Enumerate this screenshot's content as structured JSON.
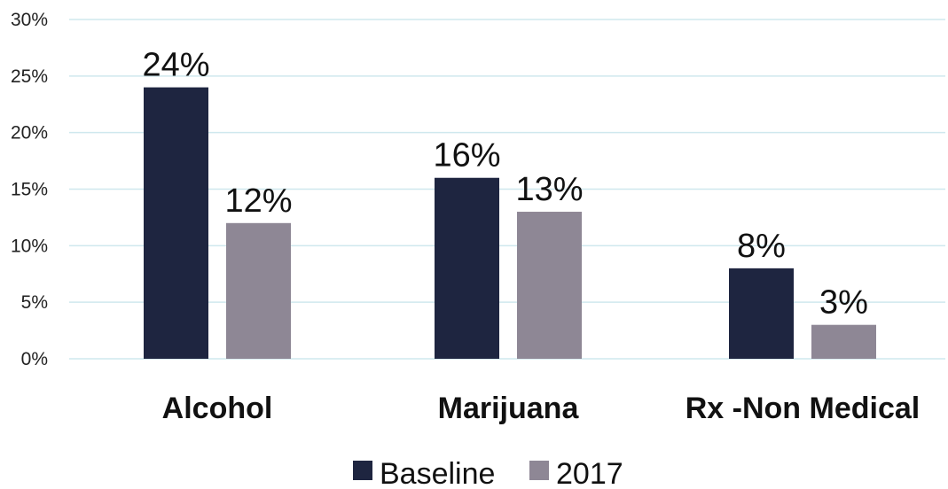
{
  "chart_data": {
    "type": "bar",
    "categories": [
      "Alcohol",
      "Marijuana",
      "Rx -Non Medical"
    ],
    "series": [
      {
        "name": "Baseline",
        "values": [
          24,
          16,
          8
        ],
        "labels": [
          "24%",
          "16%",
          "8%"
        ],
        "color": "#1e2540"
      },
      {
        "name": "2017",
        "values": [
          12,
          13,
          3
        ],
        "labels": [
          "12%",
          "13%",
          "3%"
        ],
        "color": "#8e8795"
      }
    ],
    "yticks": [
      0,
      5,
      10,
      15,
      20,
      25,
      30
    ],
    "ytick_labels": [
      "0%",
      "5%",
      "10%",
      "15%",
      "20%",
      "25%",
      "30%"
    ],
    "ylim": [
      0,
      30
    ],
    "grid": true,
    "grid_color": "#cfe8ee",
    "legend_position": "bottom-center",
    "title": "",
    "xlabel": "",
    "ylabel": ""
  }
}
